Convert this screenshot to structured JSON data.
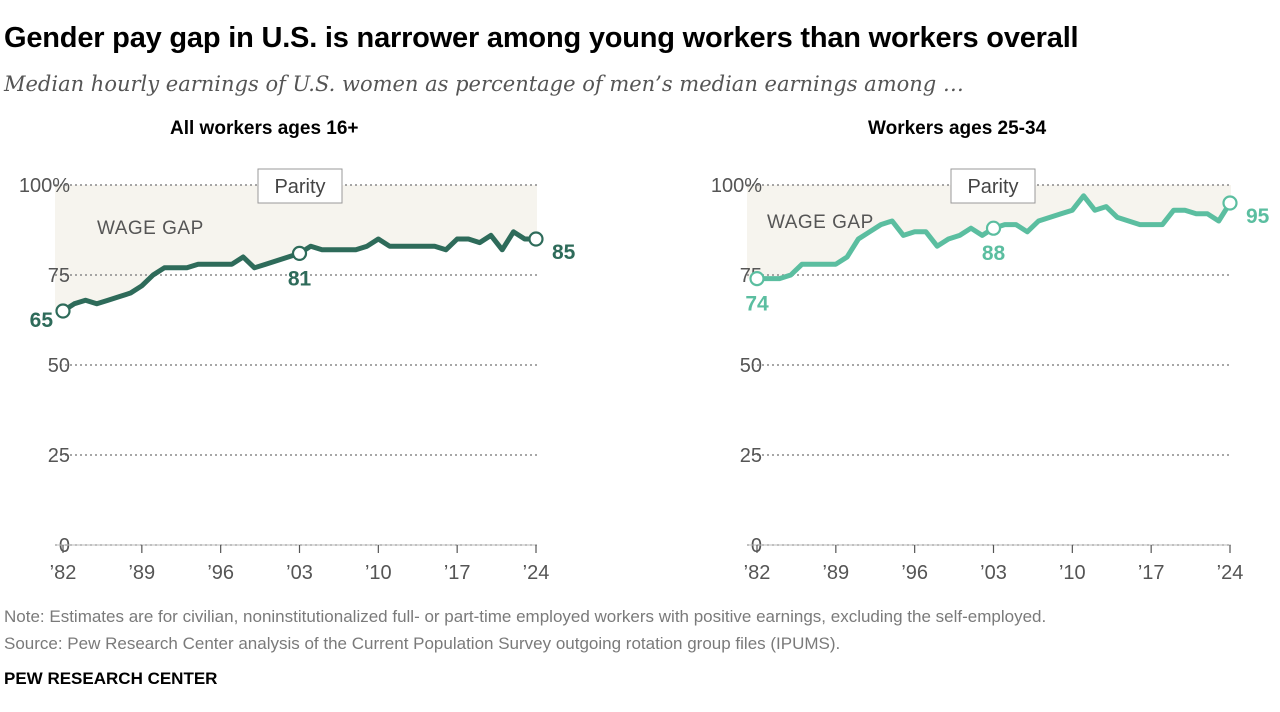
{
  "title": "Gender pay gap in U.S. is narrower among young workers than workers overall",
  "subtitle": "Median hourly earnings of U.S. women as percentage of men’s median earnings among …",
  "note": "Note: Estimates are for civilian, noninstitutionalized full- or part-time employed workers with positive earnings, excluding the self-employed.",
  "source": "Source: Pew Research Center analysis of the Current Population Survey outgoing rotation group files (IPUMS).",
  "footer": "PEW RESEARCH CENTER",
  "colors": {
    "left": "#2e6b5a",
    "right": "#5bbea0",
    "gap_fill": "#f6f4ee",
    "grid": "#8a8a8a"
  },
  "chart_data": [
    {
      "type": "line",
      "title": "All workers ages 16+",
      "ylim": [
        0,
        100
      ],
      "yticks": [
        0,
        25,
        50,
        75,
        100
      ],
      "ytick_labels": [
        "0",
        "25",
        "50",
        "75",
        "100%"
      ],
      "xticks": [
        1982,
        1989,
        1996,
        2003,
        2010,
        2017,
        2024
      ],
      "xtick_labels": [
        "’82",
        "’89",
        "’96",
        "’03",
        "’10",
        "’17",
        "’24"
      ],
      "parity_label": "Parity",
      "gap_label": "WAGE GAP",
      "series": [
        {
          "name": "All workers ages 16+",
          "x": [
            1982,
            1983,
            1984,
            1985,
            1986,
            1987,
            1988,
            1989,
            1990,
            1991,
            1992,
            1993,
            1994,
            1995,
            1996,
            1997,
            1998,
            1999,
            2000,
            2001,
            2002,
            2003,
            2004,
            2005,
            2006,
            2007,
            2008,
            2009,
            2010,
            2011,
            2012,
            2013,
            2014,
            2015,
            2016,
            2017,
            2018,
            2019,
            2020,
            2021,
            2022,
            2023,
            2024
          ],
          "values": [
            65,
            67,
            68,
            67,
            68,
            69,
            70,
            72,
            75,
            77,
            77,
            77,
            78,
            78,
            78,
            78,
            80,
            77,
            78,
            79,
            80,
            81,
            83,
            82,
            82,
            82,
            82,
            83,
            85,
            83,
            83,
            83,
            83,
            83,
            82,
            85,
            85,
            84,
            86,
            82,
            87,
            85,
            85
          ]
        }
      ],
      "highlights": [
        {
          "x": 1982,
          "value": 65,
          "label": "65",
          "position": "left"
        },
        {
          "x": 2003,
          "value": 81,
          "label": "81",
          "position": "below"
        },
        {
          "x": 2024,
          "value": 85,
          "label": "85",
          "position": "right-below"
        }
      ]
    },
    {
      "type": "line",
      "title": "Workers ages 25-34",
      "ylim": [
        0,
        100
      ],
      "yticks": [
        0,
        25,
        50,
        75,
        100
      ],
      "ytick_labels": [
        "0",
        "25",
        "50",
        "75",
        "100%"
      ],
      "xticks": [
        1982,
        1989,
        1996,
        2003,
        2010,
        2017,
        2024
      ],
      "xtick_labels": [
        "’82",
        "’89",
        "’96",
        "’03",
        "’10",
        "’17",
        "’24"
      ],
      "parity_label": "Parity",
      "gap_label": "WAGE GAP",
      "series": [
        {
          "name": "Workers ages 25-34",
          "x": [
            1982,
            1983,
            1984,
            1985,
            1986,
            1987,
            1988,
            1989,
            1990,
            1991,
            1992,
            1993,
            1994,
            1995,
            1996,
            1997,
            1998,
            1999,
            2000,
            2001,
            2002,
            2003,
            2004,
            2005,
            2006,
            2007,
            2008,
            2009,
            2010,
            2011,
            2012,
            2013,
            2014,
            2015,
            2016,
            2017,
            2018,
            2019,
            2020,
            2021,
            2022,
            2023,
            2024
          ],
          "values": [
            74,
            74,
            74,
            75,
            78,
            78,
            78,
            78,
            80,
            85,
            87,
            89,
            90,
            86,
            87,
            87,
            83,
            85,
            86,
            88,
            86,
            88,
            89,
            89,
            87,
            90,
            91,
            92,
            93,
            97,
            93,
            94,
            91,
            90,
            89,
            89,
            89,
            93,
            93,
            92,
            92,
            90,
            95
          ]
        }
      ],
      "highlights": [
        {
          "x": 1982,
          "value": 74,
          "label": "74",
          "position": "below"
        },
        {
          "x": 2003,
          "value": 88,
          "label": "88",
          "position": "below"
        },
        {
          "x": 2024,
          "value": 95,
          "label": "95",
          "position": "right-below"
        }
      ]
    }
  ]
}
